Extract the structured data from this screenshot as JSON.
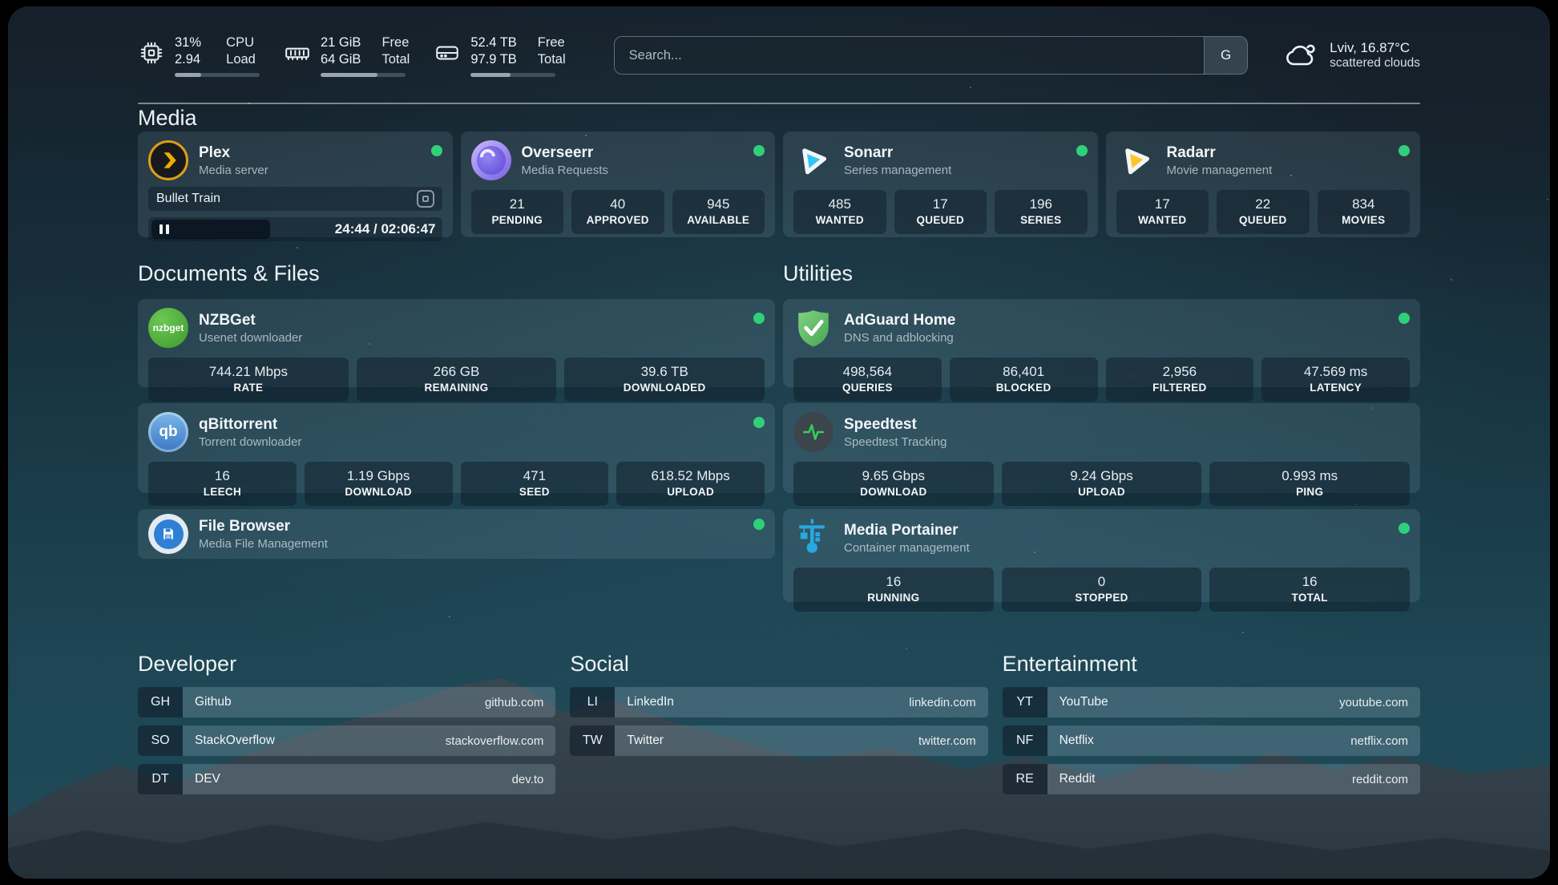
{
  "header": {
    "cpu": {
      "value1": "31%",
      "value2": "2.94",
      "label1": "CPU",
      "label2": "Load",
      "progress": 31
    },
    "memory": {
      "value1": "21 GiB",
      "value2": "64 GiB",
      "label1": "Free",
      "label2": "Total",
      "progress": 67
    },
    "disk": {
      "value1": "52.4 TB",
      "value2": "97.9 TB",
      "label1": "Free",
      "label2": "Total",
      "progress": 47
    },
    "search": {
      "placeholder": "Search...",
      "engine": "G"
    },
    "weather": {
      "summary": "Lviv, 16.87°C",
      "condition": "scattered clouds"
    }
  },
  "sections": {
    "media": {
      "title": "Media",
      "plex": {
        "name": "Plex",
        "desc": "Media server",
        "now_playing": "Bullet Train",
        "time": "24:44 / 02:06:47"
      },
      "overseerr": {
        "name": "Overseerr",
        "desc": "Media Requests",
        "stats": [
          {
            "value": "21",
            "label": "PENDING"
          },
          {
            "value": "40",
            "label": "APPROVED"
          },
          {
            "value": "945",
            "label": "AVAILABLE"
          }
        ]
      },
      "sonarr": {
        "name": "Sonarr",
        "desc": "Series management",
        "stats": [
          {
            "value": "485",
            "label": "WANTED"
          },
          {
            "value": "17",
            "label": "QUEUED"
          },
          {
            "value": "196",
            "label": "SERIES"
          }
        ]
      },
      "radarr": {
        "name": "Radarr",
        "desc": "Movie management",
        "stats": [
          {
            "value": "17",
            "label": "WANTED"
          },
          {
            "value": "22",
            "label": "QUEUED"
          },
          {
            "value": "834",
            "label": "MOVIES"
          }
        ]
      }
    },
    "documents": {
      "title": "Documents & Files",
      "nzbget": {
        "name": "NZBGet",
        "desc": "Usenet downloader",
        "icon_text": "nzbget",
        "stats": [
          {
            "value": "744.21 Mbps",
            "label": "RATE"
          },
          {
            "value": "266 GB",
            "label": "REMAINING"
          },
          {
            "value": "39.6 TB",
            "label": "DOWNLOADED"
          }
        ]
      },
      "qbittorrent": {
        "name": "qBittorrent",
        "desc": "Torrent downloader",
        "icon_text": "qb",
        "stats": [
          {
            "value": "16",
            "label": "LEECH"
          },
          {
            "value": "1.19 Gbps",
            "label": "DOWNLOAD"
          },
          {
            "value": "471",
            "label": "SEED"
          },
          {
            "value": "618.52 Mbps",
            "label": "UPLOAD"
          }
        ]
      },
      "filebrowser": {
        "name": "File Browser",
        "desc": "Media File Management"
      }
    },
    "utilities": {
      "title": "Utilities",
      "adguard": {
        "name": "AdGuard Home",
        "desc": "DNS and adblocking",
        "stats": [
          {
            "value": "498,564",
            "label": "QUERIES"
          },
          {
            "value": "86,401",
            "label": "BLOCKED"
          },
          {
            "value": "2,956",
            "label": "FILTERED"
          },
          {
            "value": "47.569 ms",
            "label": "LATENCY"
          }
        ]
      },
      "speedtest": {
        "name": "Speedtest",
        "desc": "Speedtest Tracking",
        "stats": [
          {
            "value": "9.65 Gbps",
            "label": "DOWNLOAD"
          },
          {
            "value": "9.24 Gbps",
            "label": "UPLOAD"
          },
          {
            "value": "0.993 ms",
            "label": "PING"
          }
        ]
      },
      "portainer": {
        "name": "Media Portainer",
        "desc": "Container management",
        "stats": [
          {
            "value": "16",
            "label": "RUNNING"
          },
          {
            "value": "0",
            "label": "STOPPED"
          },
          {
            "value": "16",
            "label": "TOTAL"
          }
        ]
      }
    },
    "developer": {
      "title": "Developer",
      "links": [
        {
          "abbr": "GH",
          "name": "Github",
          "url": "github.com"
        },
        {
          "abbr": "SO",
          "name": "StackOverflow",
          "url": "stackoverflow.com"
        },
        {
          "abbr": "DT",
          "name": "DEV",
          "url": "dev.to"
        }
      ]
    },
    "social": {
      "title": "Social",
      "links": [
        {
          "abbr": "LI",
          "name": "LinkedIn",
          "url": "linkedin.com"
        },
        {
          "abbr": "TW",
          "name": "Twitter",
          "url": "twitter.com"
        }
      ]
    },
    "entertainment": {
      "title": "Entertainment",
      "links": [
        {
          "abbr": "YT",
          "name": "YouTube",
          "url": "youtube.com"
        },
        {
          "abbr": "NF",
          "name": "Netflix",
          "url": "netflix.com"
        },
        {
          "abbr": "RE",
          "name": "Reddit",
          "url": "reddit.com"
        }
      ]
    }
  },
  "colors": {
    "status_online": "#2fd079",
    "plex_amber": "#e5a00d",
    "sonarr_cyan": "#35c5f4",
    "radarr_yellow": "#ffc230",
    "adguard_green": "#68bc71",
    "portainer_blue": "#29a8e0",
    "speedtest_pulse": "#30d158"
  }
}
